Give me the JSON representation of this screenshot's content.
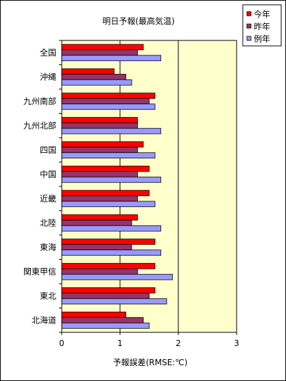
{
  "chart_data": {
    "type": "bar",
    "orientation": "horizontal",
    "title": "明日予報(最高気温)",
    "xlabel": "予報誤差(RMSE:℃)",
    "ylabel": "",
    "xlim": [
      0,
      3
    ],
    "xticks": [
      0,
      1,
      2,
      3
    ],
    "grid": "vertical lines at major ticks",
    "legend_position": "top-right",
    "categories": [
      "全国",
      "沖縄",
      "九州南部",
      "九州北部",
      "四国",
      "中国",
      "近畿",
      "北陸",
      "東海",
      "関東甲信",
      "東北",
      "北海道"
    ],
    "series": [
      {
        "name": "今年",
        "color": "#ff0000",
        "values": [
          1.4,
          0.9,
          1.6,
          1.3,
          1.4,
          1.5,
          1.5,
          1.3,
          1.6,
          1.6,
          1.6,
          1.1
        ]
      },
      {
        "name": "昨年",
        "color": "#993366",
        "values": [
          1.3,
          1.1,
          1.5,
          1.3,
          1.3,
          1.3,
          1.3,
          1.2,
          1.2,
          1.3,
          1.5,
          1.4
        ]
      },
      {
        "name": "例年",
        "color": "#9999ff",
        "values": [
          1.7,
          1.2,
          1.6,
          1.7,
          1.6,
          1.7,
          1.6,
          1.7,
          1.7,
          1.9,
          1.8,
          1.5
        ]
      }
    ],
    "plot_background": "#ffffcc"
  }
}
